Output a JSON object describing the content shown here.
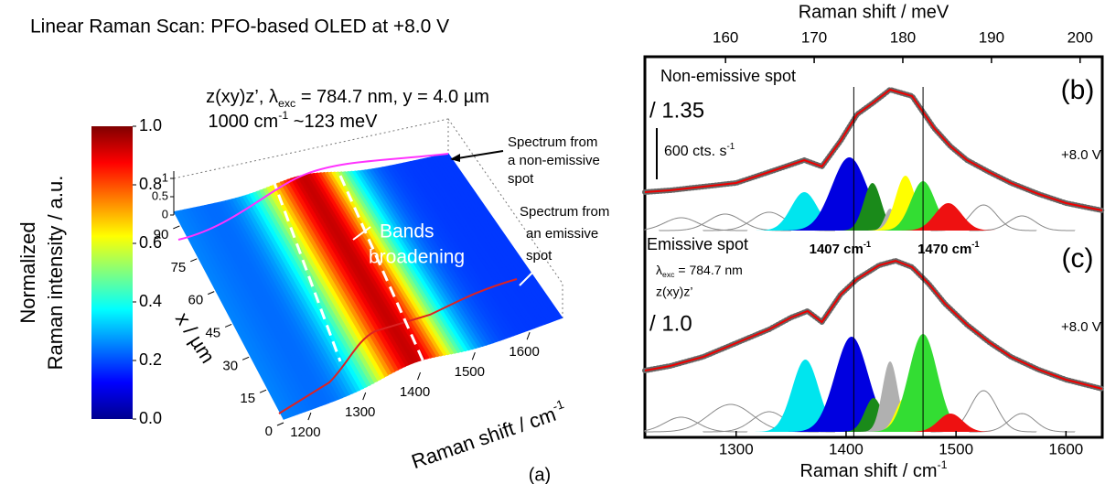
{
  "header": {
    "title": "Linear Raman Scan: PFO-based OLED at +8.0 V"
  },
  "chart_data": [
    {
      "type": "surface3d",
      "title": [
        {
          "text": "z(xy)z’, λ"
        },
        {
          "text": "exc",
          "script": "sub"
        },
        {
          "text": " = 784.7 nm, y = 4.0 µm"
        }
      ],
      "subtitle": [
        {
          "text": "1000 cm"
        },
        {
          "text": "-1",
          "script": "super"
        },
        {
          "text": " ~123 meV"
        }
      ],
      "xlabel": [
        {
          "text": "Raman shift / cm"
        },
        {
          "text": "-1",
          "script": "super"
        }
      ],
      "xlim": [
        1150,
        1660
      ],
      "xticks": [
        1200,
        1300,
        1400,
        1500,
        1600
      ],
      "ylabel": "x / µm",
      "ylim": [
        0,
        95
      ],
      "yticks": [
        0,
        15,
        30,
        45,
        60,
        75,
        90
      ],
      "zlim": [
        0,
        1.2
      ],
      "zticks": [
        0,
        0.5,
        1
      ],
      "colorbar": {
        "label": [
          "Normalized",
          "Raman intensity / a.u."
        ],
        "lim": [
          0,
          1
        ],
        "ticks": [
          {
            "value": 0,
            "label": "0.0"
          },
          0.2,
          0.4,
          0.6,
          0.8,
          {
            "value": 1,
            "label": "1.0"
          }
        ]
      },
      "annotations": {
        "non_emissive": [
          "Spectrum from",
          "a non-emissive",
          "spot"
        ],
        "bands": [
          "Bands",
          "broadening"
        ],
        "emissive": [
          "Spectrum from",
          "an emissive",
          "spot"
        ],
        "panel": "(a)"
      }
    },
    {
      "type": "spectra",
      "xlabel": [
        {
          "text": "Raman shift / cm"
        },
        {
          "text": "-1",
          "script": "super"
        }
      ],
      "x2label": "Raman shift / meV",
      "xlim": [
        1217,
        1633
      ],
      "xticks": [
        1300,
        1400,
        1500,
        1600
      ],
      "x2lim": [
        150.9,
        202.5
      ],
      "x2ticks": [
        160,
        170,
        180,
        190,
        200
      ],
      "markers": [
        {
          "value": 1407,
          "label": [
            {
              "text": "1407 cm"
            },
            {
              "text": "-1",
              "script": "super"
            }
          ]
        },
        {
          "value": 1470,
          "label": [
            {
              "text": "1470 cm"
            },
            {
              "text": "-1",
              "script": "super"
            }
          ]
        }
      ],
      "panels": [
        {
          "label": "Non-emissive spot",
          "tag": "(b)",
          "factor": "/ 1.35",
          "voltage": "+8.0 V",
          "scalebar": [
            {
              "text": "600 cts. s"
            },
            {
              "text": "-1",
              "script": "super"
            }
          ],
          "ylim": [
            0,
            185
          ],
          "fit": {
            "color": "#ee0000",
            "x": [
              1217,
              1240,
              1270,
              1300,
              1320,
              1340,
              1362,
              1378,
              1395,
              1410,
              1425,
              1440,
              1460,
              1480,
              1495,
              1510,
              1530,
              1550,
              1575,
              1600,
              1633
            ],
            "values": [
              42,
              44,
              48,
              52,
              60,
              68,
              77,
              70,
              98,
              127,
              140,
              154,
              147,
              112,
              92,
              77,
              64,
              52,
              40,
              30,
              22
            ]
          },
          "peaks": [
            {
              "center": 1250,
              "height": 14,
              "width": 15,
              "color": "#888888",
              "filled": false
            },
            {
              "center": 1290,
              "height": 18,
              "width": 15,
              "color": "#888888",
              "filled": false
            },
            {
              "center": 1330,
              "height": 20,
              "width": 15,
              "color": "#888888",
              "filled": false
            },
            {
              "center": 1525,
              "height": 28,
              "width": 12,
              "color": "#888888",
              "filled": false
            },
            {
              "center": 1560,
              "height": 16,
              "width": 12,
              "color": "#888888",
              "filled": false
            },
            {
              "center": 1362,
              "height": 42,
              "width": 12,
              "color": "#00e5ee",
              "filled": true
            },
            {
              "center": 1403,
              "height": 80,
              "width": 16,
              "color": "#0000e0",
              "filled": true
            },
            {
              "center": 1424,
              "height": 52,
              "width": 8,
              "color": "#1a8a1a",
              "filled": true
            },
            {
              "center": 1440,
              "height": 24,
              "width": 5,
              "color": "#b0b0b0",
              "filled": true
            },
            {
              "center": 1454,
              "height": 60,
              "width": 9,
              "color": "#ffff00",
              "filled": true
            },
            {
              "center": 1470,
              "height": 54,
              "width": 11,
              "color": "#33dd33",
              "filled": true
            },
            {
              "center": 1493,
              "height": 30,
              "width": 12,
              "color": "#ee1111",
              "filled": true
            }
          ]
        },
        {
          "label": "Emissive spot",
          "tag": "(c)",
          "factor": "/ 1.0",
          "voltage": "+8.0 V",
          "conditions": [
            [
              {
                "text": "λ"
              },
              {
                "text": "exc",
                "script": "sub"
              },
              {
                "text": " =  784.7 nm"
              }
            ],
            "z(xy)z’"
          ],
          "ylim": [
            0,
            205
          ],
          "fit": {
            "color": "#ee0000",
            "x": [
              1217,
              1240,
              1270,
              1300,
              1330,
              1350,
              1365,
              1378,
              1395,
              1410,
              1430,
              1445,
              1460,
              1475,
              1490,
              1510,
              1530,
              1550,
              1575,
              1600,
              1633
            ],
            "values": [
              67,
              72,
              82,
              97,
              112,
              125,
              132,
              120,
              150,
              167,
              182,
              187,
              180,
              162,
              140,
              117,
              98,
              82,
              68,
              57,
              47
            ]
          },
          "peaks": [
            {
              "center": 1250,
              "height": 16,
              "width": 15,
              "color": "#888888",
              "filled": false
            },
            {
              "center": 1295,
              "height": 30,
              "width": 20,
              "color": "#888888",
              "filled": false
            },
            {
              "center": 1330,
              "height": 22,
              "width": 15,
              "color": "#888888",
              "filled": false
            },
            {
              "center": 1525,
              "height": 45,
              "width": 12,
              "color": "#888888",
              "filled": false
            },
            {
              "center": 1560,
              "height": 20,
              "width": 12,
              "color": "#888888",
              "filled": false
            },
            {
              "center": 1363,
              "height": 79,
              "width": 12,
              "color": "#00e5ee",
              "filled": true
            },
            {
              "center": 1405,
              "height": 104,
              "width": 15,
              "color": "#0000e0",
              "filled": true
            },
            {
              "center": 1425,
              "height": 37,
              "width": 8,
              "color": "#1a8a1a",
              "filled": true
            },
            {
              "center": 1440,
              "height": 77,
              "width": 7,
              "color": "#b0b0b0",
              "filled": true
            },
            {
              "center": 1453,
              "height": 37,
              "width": 8,
              "color": "#ffff00",
              "filled": true
            },
            {
              "center": 1470,
              "height": 107,
              "width": 13,
              "color": "#33dd33",
              "filled": true
            },
            {
              "center": 1495,
              "height": 20,
              "width": 11,
              "color": "#ee1111",
              "filled": true
            }
          ]
        }
      ]
    }
  ]
}
